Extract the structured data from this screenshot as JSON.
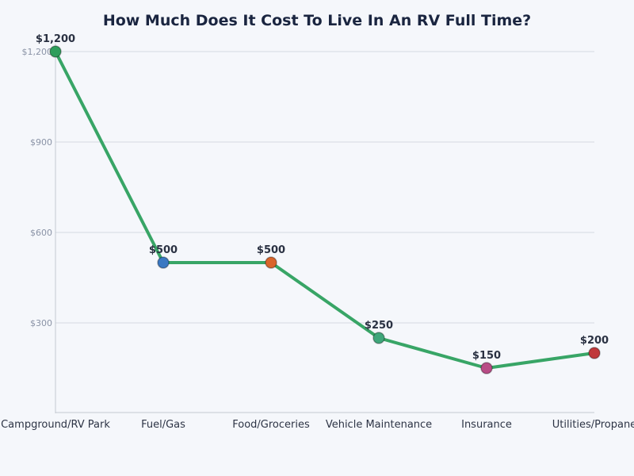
{
  "chart_data": {
    "type": "line",
    "title": "How Much Does It Cost To Live In An RV Full Time?",
    "xlabel": "",
    "ylabel": "",
    "categories": [
      "Campground/RV Park",
      "Fuel/Gas",
      "Food/Groceries",
      "Vehicle Maintenance",
      "Insurance",
      "Utilities/Propane"
    ],
    "values": [
      1200,
      500,
      500,
      250,
      150,
      200
    ],
    "data_labels": [
      "$1,200",
      "$500",
      "$500",
      "$250",
      "$150",
      "$200"
    ],
    "marker_colors": [
      "#2e9e5b",
      "#3a78c2",
      "#d9652b",
      "#3fa67a",
      "#b84c86",
      "#c0393b"
    ],
    "line_color": "#38a566",
    "ylim": [
      0,
      1200
    ],
    "yticks": [
      300,
      600,
      900,
      1200
    ],
    "ytick_labels": [
      "$300",
      "$600",
      "$900",
      "$1,200"
    ],
    "grid": true,
    "legend": "none"
  }
}
